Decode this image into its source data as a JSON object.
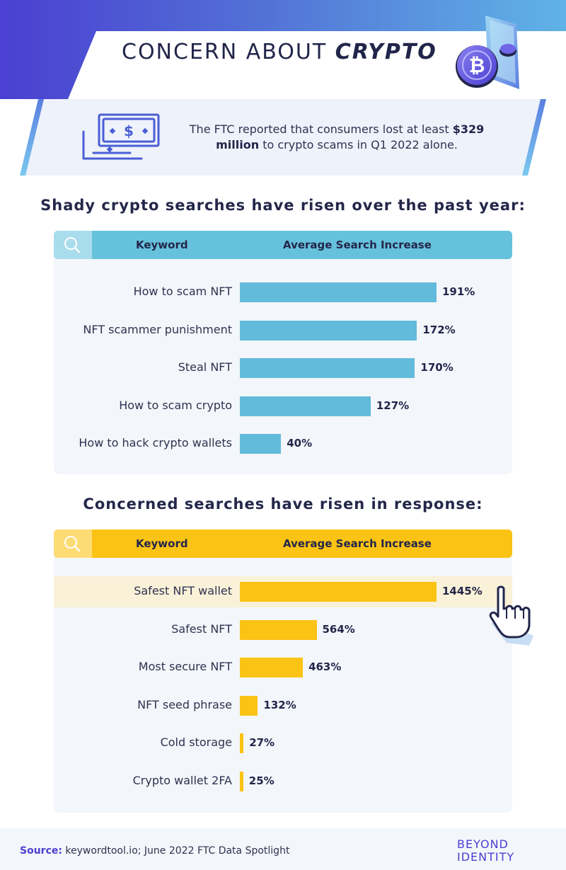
{
  "header": {
    "title_light": "CONCERN ABOUT",
    "title_bold": "CRYPTO",
    "coin_symbol": "₿"
  },
  "banner": {
    "text_before": "The FTC reported that consumers lost at least ",
    "text_bold": "$329 million",
    "text_after": " to crypto scams in Q1 2022 alone.",
    "icon": "money-bills-icon",
    "currency_symbol": "$"
  },
  "section1": {
    "heading_bold": "Shady crypto searches",
    "heading_rest": " have risen over the past year:"
  },
  "section2": {
    "heading_bold": "Concerned searches",
    "heading_rest": " have risen in response:"
  },
  "table_headers": {
    "keyword": "Keyword",
    "average": "Average Search Increase"
  },
  "chart_data": [
    {
      "type": "bar",
      "orientation": "horizontal",
      "categories": [
        "How to scam NFT",
        "NFT scammer punishment",
        "Steal NFT",
        "How to scam crypto",
        "How to hack crypto wallets"
      ],
      "values": [
        191,
        172,
        170,
        127,
        40
      ],
      "value_labels": [
        "191%",
        "172%",
        "170%",
        "127%",
        "40%"
      ],
      "xlabel": "Average Search Increase",
      "ylabel": "Keyword",
      "color": "#62bbdb"
    },
    {
      "type": "bar",
      "orientation": "horizontal",
      "categories": [
        "Safest NFT wallet",
        "Safest NFT",
        "Most secure NFT",
        "NFT seed phrase",
        "Cold storage",
        "Crypto wallet 2FA"
      ],
      "values": [
        1445,
        564,
        463,
        132,
        27,
        25
      ],
      "value_labels": [
        "1445%",
        "564%",
        "463%",
        "132%",
        "27%",
        "25%"
      ],
      "xlabel": "Average Search Increase",
      "ylabel": "Keyword",
      "highlighted_category": "Safest NFT wallet",
      "color": "#fbc313"
    }
  ],
  "footer": {
    "source_label": "Source:",
    "source_text": " keywordtool.io; June 2022 FTC Data Spotlight",
    "brand_line1": "BEYOND",
    "brand_line2": "IDENTITY"
  },
  "colors": {
    "header_gradient_start": "#4a3fd1",
    "header_gradient_end": "#60b3e6",
    "blue_bar": "#62bbdb",
    "yellow_bar": "#fbc313",
    "text_dark": "#23264a",
    "brand": "#4a3fd1"
  }
}
